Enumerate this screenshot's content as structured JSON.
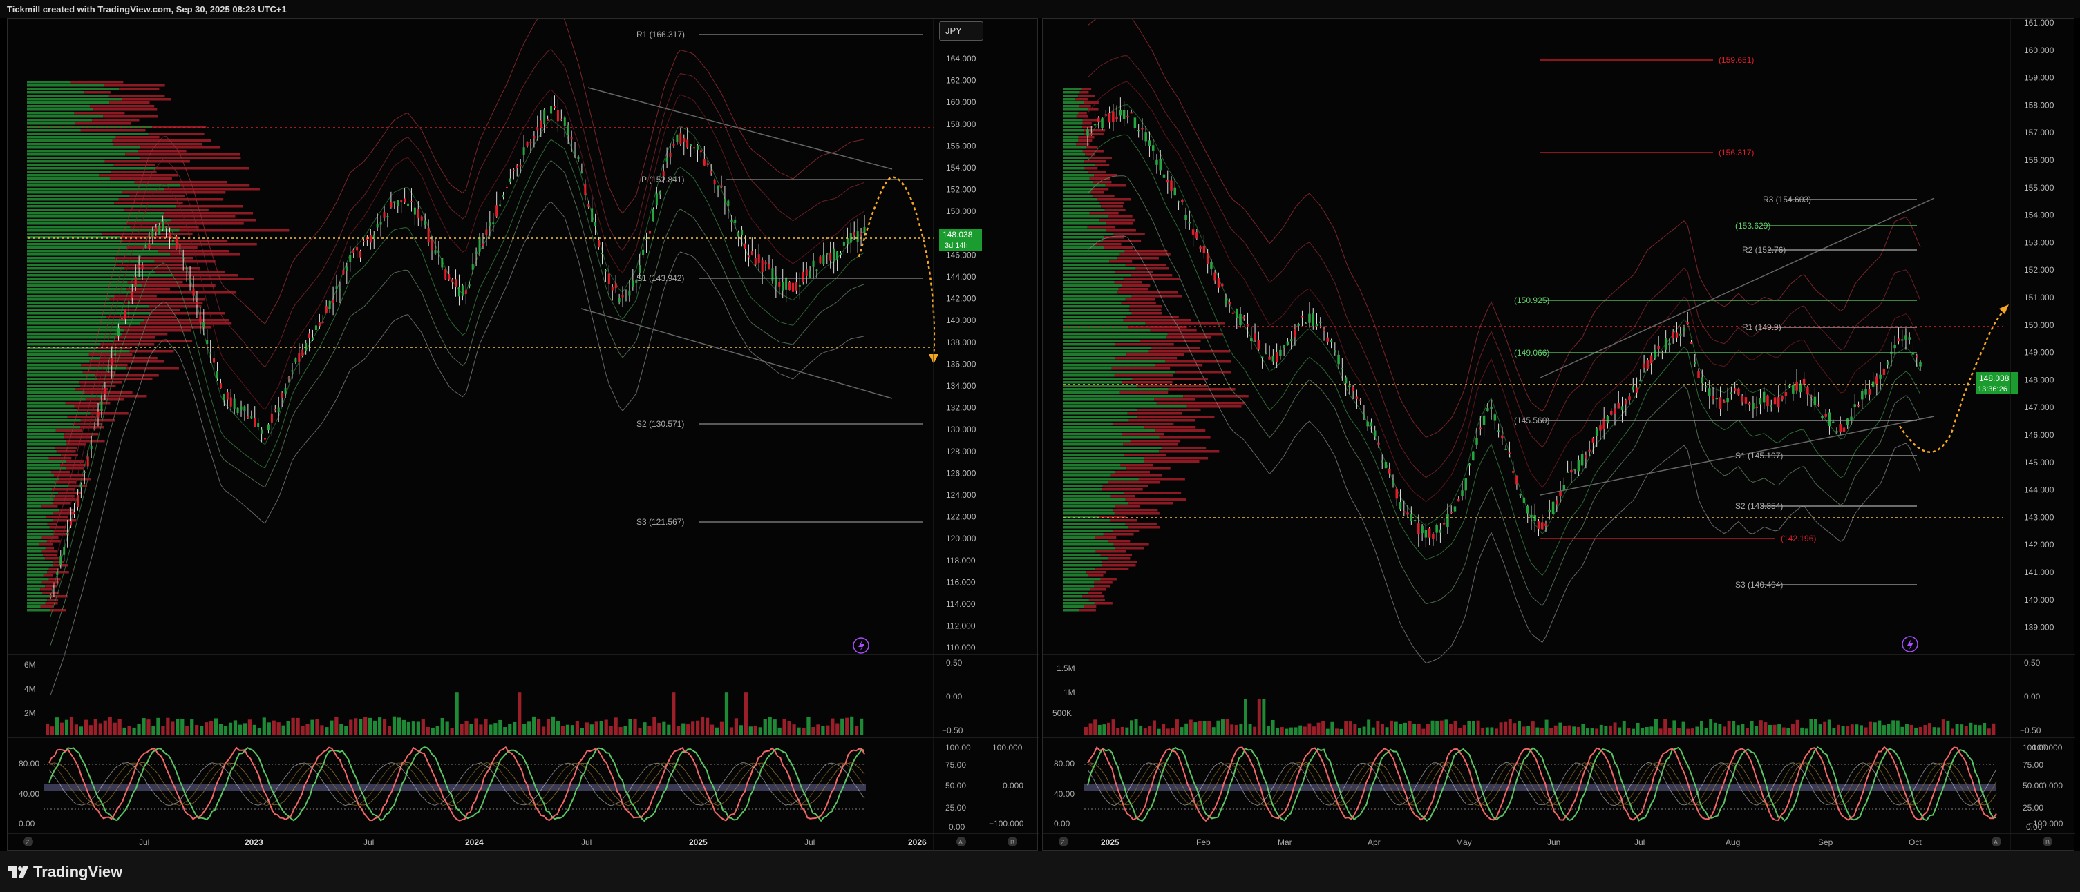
{
  "header": {
    "text": "Tickmill created with TradingView.com, Sep 30, 2025 08:23 UTC+1"
  },
  "footer": {
    "brand": "TradingView"
  },
  "colors": {
    "up": "#26a641",
    "down": "#e01e2b",
    "accent": "#f5a623",
    "bg": "#000000",
    "lime": "#00c853",
    "purple": "#a64dff"
  },
  "left": {
    "currency": "JPY",
    "price_axis": [
      "164.000",
      "162.000",
      "160.000",
      "158.000",
      "156.000",
      "154.000",
      "152.000",
      "150.000",
      "148.000",
      "146.000",
      "144.000",
      "142.000",
      "140.000",
      "138.000",
      "136.000",
      "134.000",
      "132.000",
      "130.000",
      "128.000",
      "126.000",
      "124.000",
      "122.000",
      "120.000",
      "118.000",
      "116.000",
      "114.000",
      "112.000",
      "110.000"
    ],
    "time_axis": [
      "Jul",
      "2023",
      "Jul",
      "2024",
      "Jul",
      "2025",
      "Jul",
      "2026"
    ],
    "current_price": "148.038",
    "countdown": "3d 14h",
    "pivots": [
      "R1 (166.317)",
      "P (152.841)",
      "S1 (143.942)",
      "S2 (130.571)",
      "S3 (121.567)"
    ],
    "volume_axis": [
      "6M",
      "4M",
      "2M"
    ],
    "osc_right_axis": [
      "0.50",
      "0.00",
      "−0.50"
    ],
    "stoch_left_axis": [
      "80.00",
      "40.00",
      "0.00"
    ],
    "stoch_right_axis": [
      "100.00",
      "75.00",
      "50.00",
      "25.00",
      "0.00"
    ],
    "rsi_axis": [
      "100.000",
      "0.000",
      "−100.000"
    ],
    "corner_buttons": [
      "Z",
      "A",
      "B"
    ]
  },
  "right": {
    "price_axis": [
      "161.000",
      "160.000",
      "159.000",
      "158.000",
      "157.000",
      "156.000",
      "155.000",
      "154.000",
      "153.000",
      "152.000",
      "151.000",
      "150.000",
      "149.000",
      "148.000",
      "147.000",
      "146.000",
      "145.000",
      "144.000",
      "143.000",
      "142.000",
      "141.000",
      "140.000",
      "139.000"
    ],
    "time_axis": [
      "2025",
      "Feb",
      "Mar",
      "Apr",
      "May",
      "Jun",
      "Jul",
      "Aug",
      "Sep",
      "Oct"
    ],
    "current_price": "148.038",
    "countdown": "13:36:26",
    "levels": [
      "(159.651)",
      "(156.317)",
      "R3 (154.603)",
      "(153.629)",
      "R2 (152.76)",
      "(150.925)",
      "R1 (149.9)",
      "(149.066)",
      "(145.560)",
      "S1 (145.197)",
      "S2 (143.354)",
      "(142.196)",
      "S3 (140.494)"
    ],
    "volume_axis": [
      "1.5M",
      "1M",
      "500K"
    ],
    "osc_right_axis": [
      "0.50",
      "0.00",
      "−0.50"
    ],
    "stoch_left_axis": [
      "80.00",
      "40.00",
      "0.00"
    ],
    "stoch_right_axis": [
      "100.00",
      "75.00",
      "50.00",
      "25.00",
      "0.00"
    ],
    "rsi_axis": [
      "100.000",
      "0.000",
      "−100.000"
    ],
    "corner_buttons": [
      "Z",
      "A",
      "B"
    ]
  }
}
